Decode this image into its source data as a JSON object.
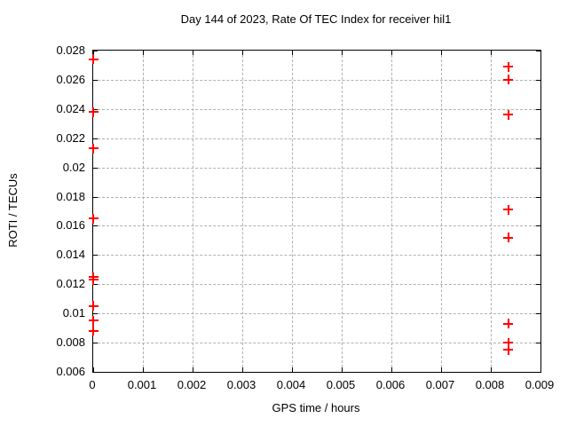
{
  "page": {
    "background": "#ffffff",
    "text_color": "#000000"
  },
  "chart_data": {
    "type": "scatter",
    "title": "Day 144 of 2023, Rate Of TEC Index for receiver hil1",
    "xlabel": "GPS time / hours",
    "ylabel": "ROTI / TECUs",
    "xlim": [
      0,
      0.009
    ],
    "ylim": [
      0.006,
      0.028
    ],
    "grid": true,
    "legend_position": "none",
    "marker": "plus",
    "marker_color": "#ff0000",
    "axis_color": "#000000",
    "grid_color": "#b0b0b0",
    "x_ticks": [
      {
        "v": 0,
        "label": "0"
      },
      {
        "v": 0.001,
        "label": "0.001"
      },
      {
        "v": 0.002,
        "label": "0.002"
      },
      {
        "v": 0.003,
        "label": "0.003"
      },
      {
        "v": 0.004,
        "label": "0.004"
      },
      {
        "v": 0.005,
        "label": "0.005"
      },
      {
        "v": 0.006,
        "label": "0.006"
      },
      {
        "v": 0.007,
        "label": "0.007"
      },
      {
        "v": 0.008,
        "label": "0.008"
      },
      {
        "v": 0.009,
        "label": "0.009"
      }
    ],
    "y_ticks": [
      {
        "v": 0.006,
        "label": "0.006"
      },
      {
        "v": 0.008,
        "label": "0.008"
      },
      {
        "v": 0.01,
        "label": "0.01"
      },
      {
        "v": 0.012,
        "label": "0.012"
      },
      {
        "v": 0.014,
        "label": "0.014"
      },
      {
        "v": 0.016,
        "label": "0.016"
      },
      {
        "v": 0.018,
        "label": "0.018"
      },
      {
        "v": 0.02,
        "label": "0.02"
      },
      {
        "v": 0.022,
        "label": "0.022"
      },
      {
        "v": 0.024,
        "label": "0.024"
      },
      {
        "v": 0.026,
        "label": "0.026"
      },
      {
        "v": 0.028,
        "label": "0.028"
      }
    ],
    "series": [
      {
        "name": "ROTI",
        "points": [
          [
            0,
            0.0274
          ],
          [
            0,
            0.0238
          ],
          [
            0,
            0.0213
          ],
          [
            0,
            0.0165
          ],
          [
            0,
            0.0125
          ],
          [
            0,
            0.0123
          ],
          [
            0,
            0.0105
          ],
          [
            0,
            0.0095
          ],
          [
            0,
            0.0088
          ],
          [
            0.00835,
            0.0269
          ],
          [
            0.00835,
            0.026
          ],
          [
            0.00835,
            0.0236
          ],
          [
            0.00835,
            0.0171
          ],
          [
            0.00835,
            0.0152
          ],
          [
            0.00835,
            0.0093
          ],
          [
            0.00835,
            0.008
          ],
          [
            0.00835,
            0.0075
          ]
        ]
      }
    ]
  }
}
